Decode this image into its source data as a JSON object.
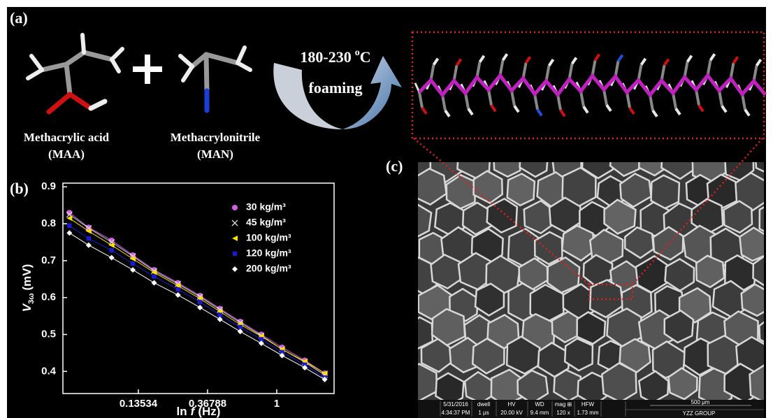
{
  "panel_labels": [
    "(a)",
    "(b)",
    "(c)"
  ],
  "reaction": {
    "reactant_1": {
      "name": "Methacrylic acid",
      "abbr": "(MAA)"
    },
    "reactant_2": {
      "name": "Methacrylonitrile",
      "abbr": "(MAN)"
    },
    "condition": {
      "temperature": "180-230",
      "degree": "o",
      "unit": "C",
      "process": "foaming"
    }
  },
  "chart_data": {
    "type": "line",
    "ylabel": {
      "symbol": "V",
      "subscript": "3ω",
      "unit": "(mV)"
    },
    "xlabel": {
      "prefix": "ln",
      "symbol": "f",
      "unit": "(Hz)"
    },
    "xscale": "log",
    "xlim": [
      0.0455,
      2.29
    ],
    "xticks": [
      0.13534,
      0.36788,
      1
    ],
    "ylim": [
      0.34,
      0.91
    ],
    "yticks": [
      0.4,
      0.5,
      0.6,
      0.7,
      0.8,
      0.9
    ],
    "legend": "upper right",
    "x": [
      0.05,
      0.066,
      0.092,
      0.125,
      0.17,
      0.24,
      0.33,
      0.44,
      0.59,
      0.8,
      1.08,
      1.5,
      2.0
    ],
    "series": [
      {
        "name": "30  kg/m³",
        "color": "#d65ee6",
        "marker": "circle",
        "values": [
          0.83,
          0.79,
          0.755,
          0.715,
          0.675,
          0.64,
          0.605,
          0.57,
          0.535,
          0.5,
          0.465,
          0.43,
          0.395
        ]
      },
      {
        "name": "45  kg/m³",
        "color": "#d8d8d8",
        "marker": "cross",
        "values": [
          0.825,
          0.788,
          0.75,
          0.712,
          0.672,
          0.637,
          0.602,
          0.567,
          0.532,
          0.497,
          0.46,
          0.425,
          0.39
        ]
      },
      {
        "name": "100 kg/m³",
        "color": "#ffe000",
        "marker": "triangle",
        "values": [
          0.815,
          0.78,
          0.742,
          0.705,
          0.668,
          0.632,
          0.597,
          0.562,
          0.527,
          0.495,
          0.46,
          0.427,
          0.395
        ]
      },
      {
        "name": "120 kg/m³",
        "color": "#1a1ad0",
        "marker": "square",
        "values": [
          0.795,
          0.76,
          0.728,
          0.692,
          0.657,
          0.622,
          0.588,
          0.553,
          0.52,
          0.487,
          0.452,
          0.418,
          0.383
        ]
      },
      {
        "name": "200 kg/m³",
        "color": "#ffffff",
        "marker": "diamond",
        "values": [
          0.775,
          0.742,
          0.708,
          0.675,
          0.64,
          0.607,
          0.573,
          0.541,
          0.508,
          0.476,
          0.443,
          0.41,
          0.378
        ]
      }
    ]
  },
  "sem_info": {
    "date": "5/31/2016",
    "time": "4:34:37 PM",
    "dwell_label": "dwell",
    "dwell": "1 μs",
    "hv_label": "HV",
    "hv": "20.00 kV",
    "wd_label": "WD",
    "wd": "9.4 mm",
    "mag_label": "mag ⊞",
    "mag": "120 x",
    "hfw_label": "HFW",
    "hfw": "1.73 mm",
    "scale": "500 μm",
    "group": "YZZ GROUP"
  }
}
